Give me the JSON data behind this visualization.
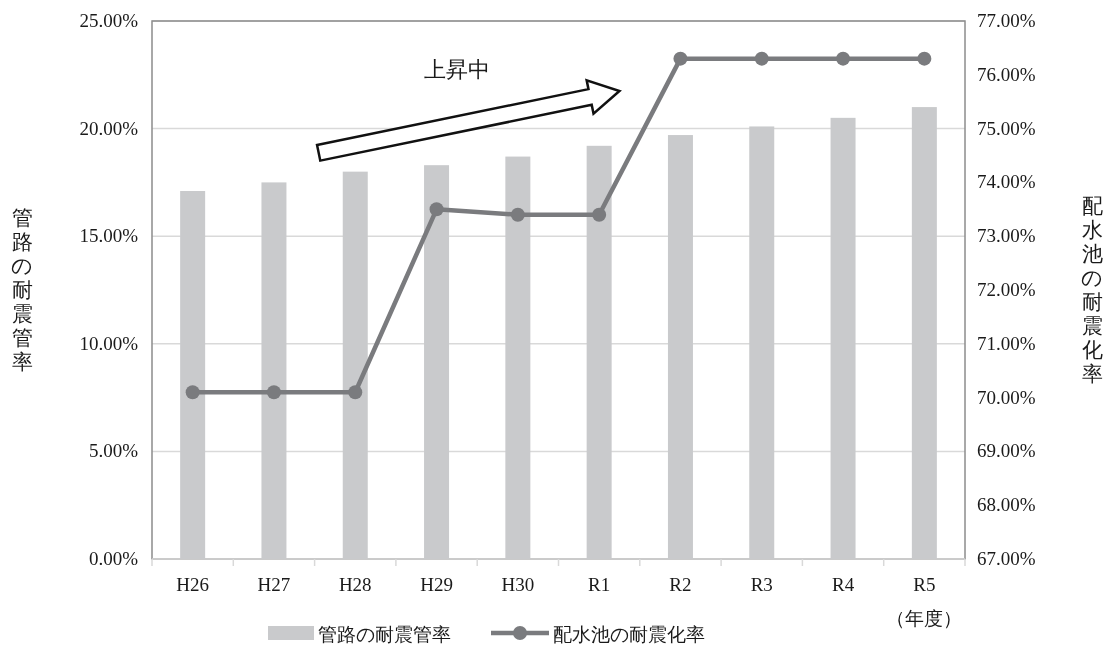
{
  "chart_data": {
    "type": "bar",
    "categories": [
      "H26",
      "H27",
      "H28",
      "H29",
      "H30",
      "R1",
      "R2",
      "R3",
      "R4",
      "R5"
    ],
    "series": [
      {
        "name": "管路の耐震管率",
        "color": "#c9cacc",
        "values": [
          17.1,
          17.5,
          18.0,
          18.3,
          18.7,
          19.2,
          19.7,
          20.1,
          20.5,
          21.0
        ]
      },
      {
        "name": "配水池の耐震化率",
        "type": "line",
        "axis": "y2",
        "color": "#7a7b7e",
        "marker": "circle",
        "line_style": "solid",
        "values": [
          70.1,
          70.1,
          70.1,
          73.5,
          73.4,
          73.4,
          76.3,
          76.3,
          76.3,
          76.3
        ]
      }
    ],
    "ylabel": "管路の耐震管率",
    "y2label": "配水池の耐震化率",
    "xlabel": "（年度）",
    "annotations": [
      "上昇中"
    ],
    "ylim": [
      0,
      25
    ],
    "yticks": [
      {
        "value": 0,
        "label": "0.00%"
      },
      {
        "value": 5,
        "label": "5.00%"
      },
      {
        "value": 10,
        "label": "10.00%"
      },
      {
        "value": 15,
        "label": "15.00%"
      },
      {
        "value": 20,
        "label": "20.00%"
      },
      {
        "value": 25,
        "label": "25.00%"
      }
    ],
    "y2lim": [
      67,
      77
    ],
    "y2ticks": [
      {
        "value": 67,
        "label": "67.00%"
      },
      {
        "value": 68,
        "label": "68.00%"
      },
      {
        "value": 69,
        "label": "69.00%"
      },
      {
        "value": 70,
        "label": "70.00%"
      },
      {
        "value": 71,
        "label": "71.00%"
      },
      {
        "value": 72,
        "label": "72.00%"
      },
      {
        "value": 73,
        "label": "73.00%"
      },
      {
        "value": 74,
        "label": "74.00%"
      },
      {
        "value": 75,
        "label": "75.00%"
      },
      {
        "value": 76,
        "label": "76.00%"
      },
      {
        "value": 77,
        "label": "77.00%"
      }
    ],
    "grid": "y",
    "legend": "bottom"
  }
}
